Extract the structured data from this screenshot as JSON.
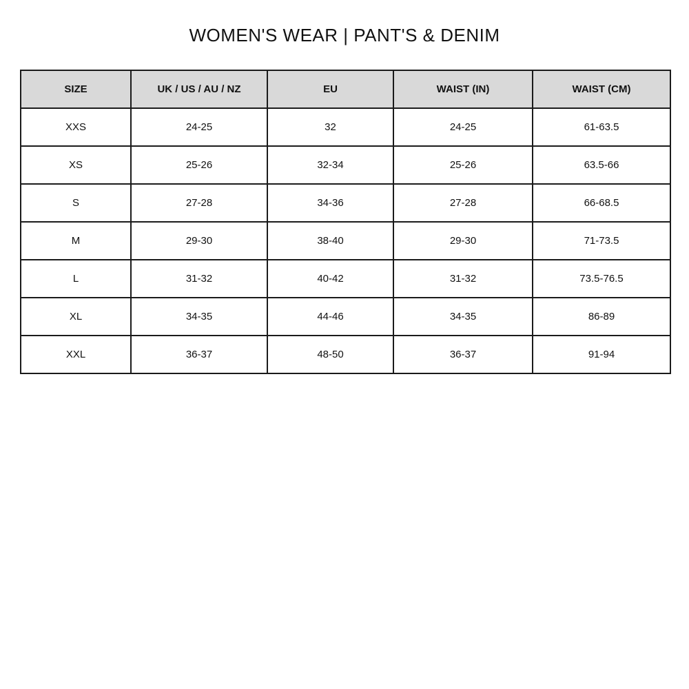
{
  "title": "WOMEN'S WEAR | PANT'S & DENIM",
  "table": {
    "headers": [
      "SIZE",
      "UK / US / AU / NZ",
      "EU",
      "WAIST (IN)",
      "WAIST (CM)"
    ],
    "rows": [
      [
        "XXS",
        "24-25",
        "32",
        "24-25",
        "61-63.5"
      ],
      [
        "XS",
        "25-26",
        "32-34",
        "25-26",
        "63.5-66"
      ],
      [
        "S",
        "27-28",
        "34-36",
        "27-28",
        "66-68.5"
      ],
      [
        "M",
        "29-30",
        "38-40",
        "29-30",
        "71-73.5"
      ],
      [
        "L",
        "31-32",
        "40-42",
        "31-32",
        "73.5-76.5"
      ],
      [
        "XL",
        "34-35",
        "44-46",
        "34-35",
        "86-89"
      ],
      [
        "XXL",
        "36-37",
        "48-50",
        "36-37",
        "91-94"
      ]
    ],
    "header_bg": "#d9d9d9",
    "border_color": "#1a1a1a"
  }
}
